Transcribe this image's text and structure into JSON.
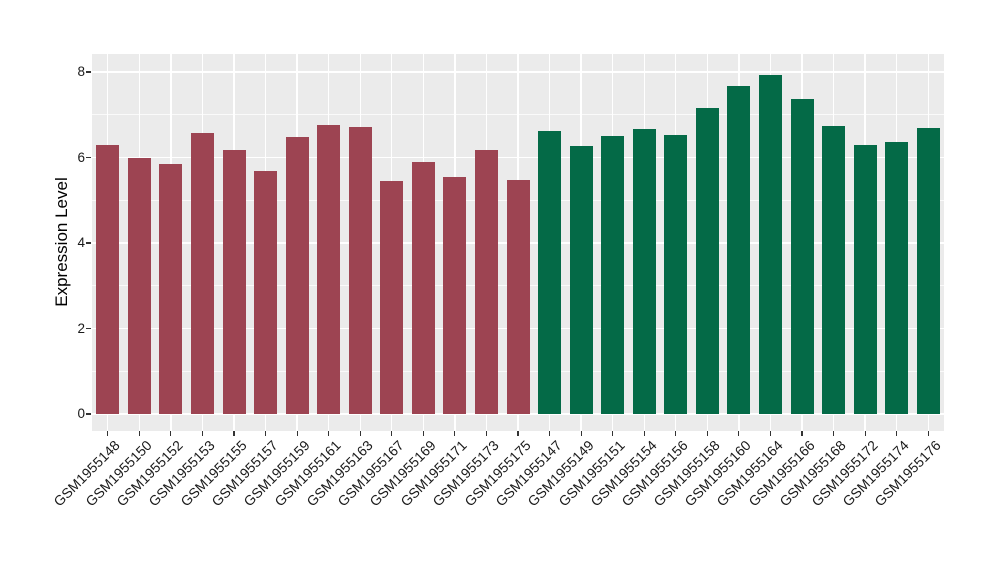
{
  "chart_data": {
    "type": "bar",
    "title": "",
    "xlabel": "",
    "ylabel": "Expression Level",
    "ylim": [
      0,
      8.4
    ],
    "yticks": [
      0,
      2,
      4,
      6,
      8
    ],
    "yticks_minor": [
      1,
      3,
      5,
      7
    ],
    "grid": "on",
    "legend_position": "none",
    "panel_background": "#EBEBEB",
    "gridline_color": "#FFFFFF",
    "tick_label_color": "#1A1A1A",
    "axis_title_color": "#000000",
    "group_colors": {
      "maroon": "#9D4452",
      "green": "#046A47"
    },
    "categories": [
      "GSM1955148",
      "GSM1955150",
      "GSM1955152",
      "GSM1955153",
      "GSM1955155",
      "GSM1955157",
      "GSM1955159",
      "GSM1955161",
      "GSM1955163",
      "GSM1955167",
      "GSM1955169",
      "GSM1955171",
      "GSM1955173",
      "GSM1955175",
      "GSM1955147",
      "GSM1955149",
      "GSM1955151",
      "GSM1955154",
      "GSM1955156",
      "GSM1955158",
      "GSM1955160",
      "GSM1955164",
      "GSM1955166",
      "GSM1955168",
      "GSM1955172",
      "GSM1955174",
      "GSM1955176"
    ],
    "values": [
      6.3,
      6.0,
      5.86,
      6.58,
      6.18,
      5.69,
      6.48,
      6.77,
      6.72,
      5.46,
      5.89,
      5.55,
      6.18,
      5.47,
      6.62,
      6.28,
      6.5,
      6.66,
      6.52,
      7.16,
      7.68,
      7.93,
      7.37,
      6.74,
      6.3,
      6.37,
      6.69
    ],
    "groups": [
      "maroon",
      "maroon",
      "maroon",
      "maroon",
      "maroon",
      "maroon",
      "maroon",
      "maroon",
      "maroon",
      "maroon",
      "maroon",
      "maroon",
      "maroon",
      "maroon",
      "green",
      "green",
      "green",
      "green",
      "green",
      "green",
      "green",
      "green",
      "green",
      "green",
      "green",
      "green",
      "green"
    ]
  }
}
